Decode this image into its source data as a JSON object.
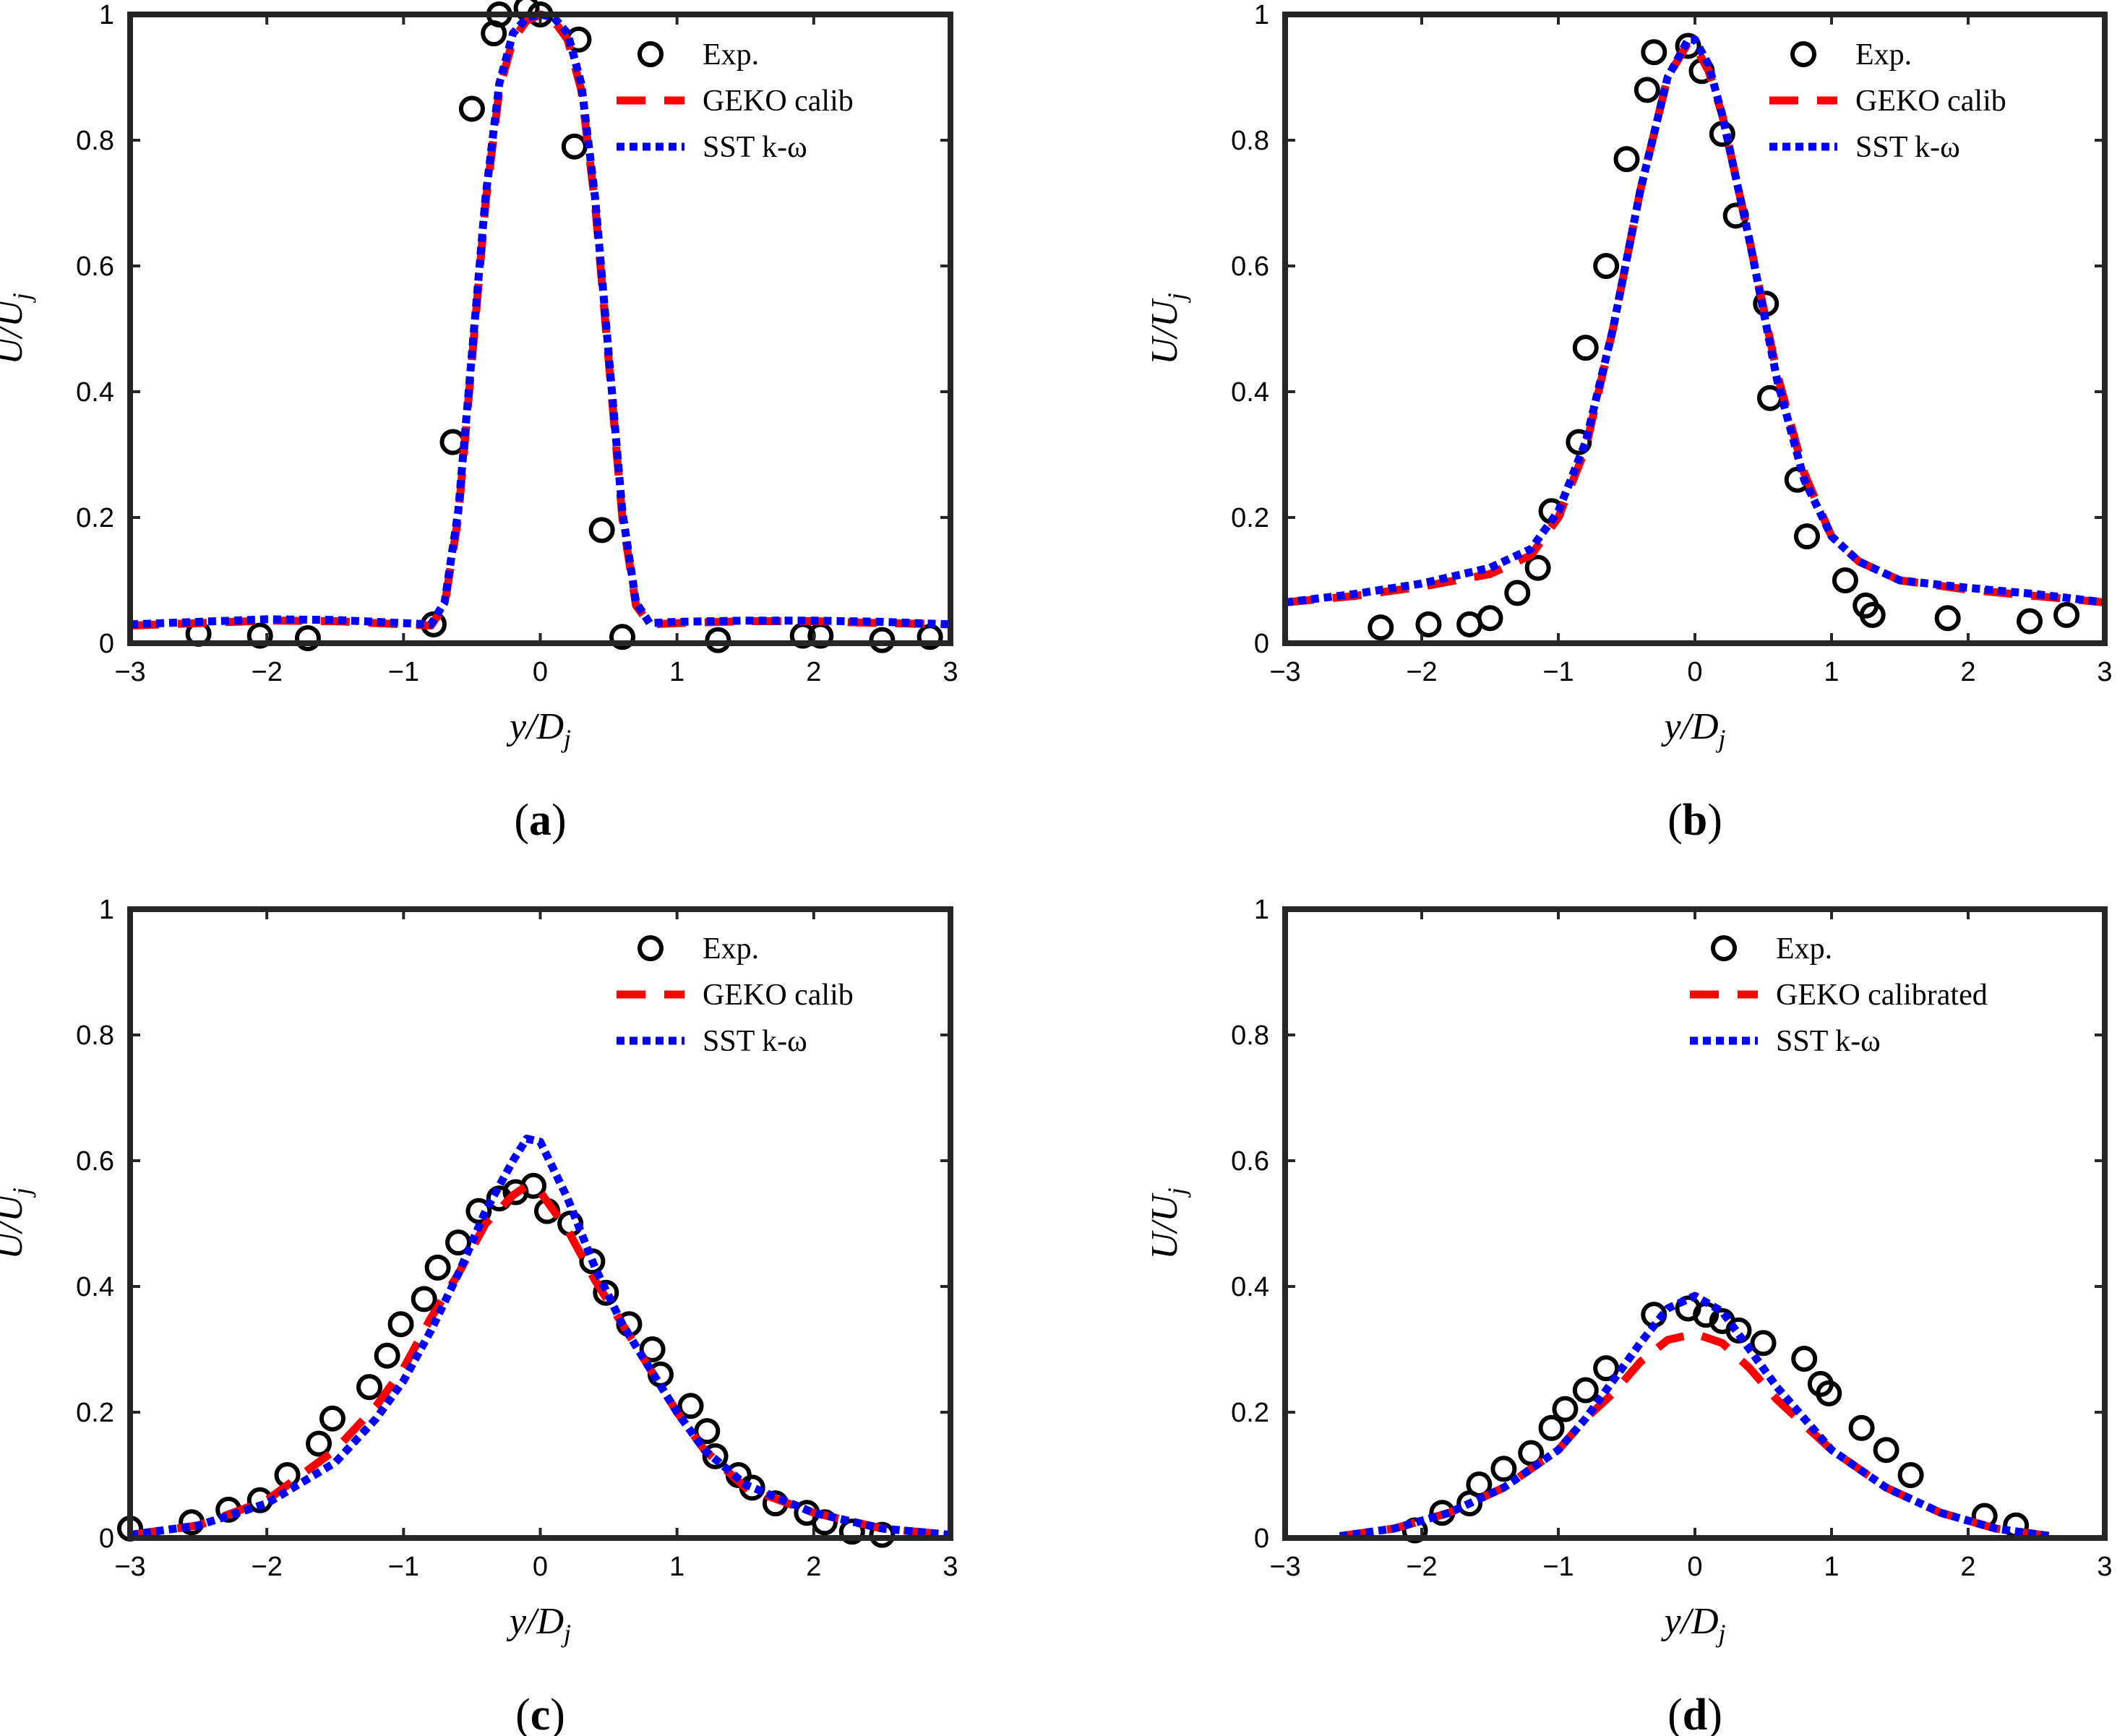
{
  "chart_data": [
    {
      "type": "line",
      "panel_label": "(a)",
      "xlabel": "y/D_j",
      "ylabel": "U/U_j",
      "xlim": [
        -3,
        3
      ],
      "ylim": [
        0,
        1
      ],
      "xticks": [
        "−3",
        "−2",
        "−1",
        "0",
        "1",
        "2",
        "3"
      ],
      "yticks": [
        "0",
        "0.2",
        "0.4",
        "0.6",
        "0.8",
        "1"
      ],
      "legend": {
        "position": "top-right",
        "entries": [
          "Exp.",
          "GEKO calib",
          "SST k-ω"
        ]
      },
      "series": [
        {
          "name": "Exp.",
          "style": "circles",
          "color": "#000000",
          "x": [
            -2.5,
            -2.05,
            -1.7,
            -0.78,
            -0.64,
            -0.5,
            -0.34,
            -0.3,
            -0.1,
            0.0,
            0.28,
            0.25,
            0.45,
            0.6,
            1.3,
            1.92,
            2.05,
            2.5,
            2.85
          ],
          "y": [
            0.015,
            0.012,
            0.008,
            0.03,
            0.32,
            0.85,
            0.97,
            1.0,
            1.01,
            1.0,
            0.96,
            0.79,
            0.18,
            0.01,
            0.005,
            0.012,
            0.012,
            0.005,
            0.01
          ]
        },
        {
          "name": "GEKO calib",
          "style": "dashed",
          "color": "#ff0000",
          "x": [
            -3,
            -2.5,
            -2,
            -1.5,
            -1,
            -0.8,
            -0.7,
            -0.6,
            -0.5,
            -0.4,
            -0.3,
            -0.2,
            -0.1,
            0,
            0.1,
            0.2,
            0.3,
            0.4,
            0.5,
            0.6,
            0.7,
            0.8,
            1,
            1.5,
            2,
            2.5,
            3
          ],
          "y": [
            0.028,
            0.032,
            0.036,
            0.035,
            0.03,
            0.028,
            0.06,
            0.2,
            0.45,
            0.7,
            0.88,
            0.96,
            0.99,
            1.0,
            0.99,
            0.96,
            0.88,
            0.7,
            0.45,
            0.2,
            0.06,
            0.03,
            0.032,
            0.035,
            0.035,
            0.032,
            0.03
          ]
        },
        {
          "name": "SST k-ω",
          "style": "dotted",
          "color": "#0000ff",
          "x": [
            -3,
            -2.5,
            -2,
            -1.5,
            -1,
            -0.8,
            -0.7,
            -0.6,
            -0.5,
            -0.4,
            -0.3,
            -0.2,
            -0.1,
            0,
            0.1,
            0.2,
            0.3,
            0.4,
            0.5,
            0.6,
            0.7,
            0.8,
            1,
            1.5,
            2,
            2.5,
            3
          ],
          "y": [
            0.03,
            0.034,
            0.038,
            0.037,
            0.032,
            0.03,
            0.065,
            0.21,
            0.46,
            0.71,
            0.89,
            0.97,
            0.995,
            1.0,
            0.995,
            0.97,
            0.89,
            0.71,
            0.46,
            0.21,
            0.065,
            0.032,
            0.034,
            0.036,
            0.036,
            0.034,
            0.03
          ]
        }
      ]
    },
    {
      "type": "line",
      "panel_label": "(b)",
      "xlabel": "y/D_j",
      "ylabel": "U/U_j",
      "xlim": [
        -3,
        3
      ],
      "ylim": [
        0,
        1
      ],
      "xticks": [
        "−3",
        "−2",
        "−1",
        "0",
        "1",
        "2",
        "3"
      ],
      "yticks": [
        "0",
        "0.2",
        "0.4",
        "0.6",
        "0.8",
        "1"
      ],
      "legend": {
        "position": "top-right",
        "entries": [
          "Exp.",
          "GEKO calib",
          "SST k-ω"
        ]
      },
      "series": [
        {
          "name": "Exp.",
          "style": "circles",
          "color": "#000000",
          "x": [
            -2.3,
            -1.95,
            -1.65,
            -1.5,
            -1.3,
            -1.15,
            -1.05,
            -0.85,
            -0.8,
            -0.65,
            -0.5,
            -0.35,
            -0.3,
            -0.05,
            0.05,
            0.2,
            0.3,
            0.52,
            0.55,
            0.75,
            0.82,
            1.1,
            1.25,
            1.3,
            1.85,
            2.45,
            2.72
          ],
          "y": [
            0.025,
            0.03,
            0.03,
            0.04,
            0.08,
            0.12,
            0.21,
            0.32,
            0.47,
            0.6,
            0.77,
            0.88,
            0.94,
            0.95,
            0.91,
            0.81,
            0.68,
            0.54,
            0.39,
            0.26,
            0.17,
            0.1,
            0.06,
            0.045,
            0.04,
            0.035,
            0.045
          ]
        },
        {
          "name": "GEKO calib",
          "style": "dashed",
          "color": "#ff0000",
          "x": [
            -3,
            -2.5,
            -2,
            -1.5,
            -1.2,
            -1,
            -0.8,
            -0.6,
            -0.4,
            -0.2,
            -0.05,
            0,
            0.1,
            0.2,
            0.4,
            0.6,
            0.8,
            1,
            1.2,
            1.5,
            2,
            2.5,
            3
          ],
          "y": [
            0.065,
            0.075,
            0.09,
            0.11,
            0.14,
            0.2,
            0.31,
            0.5,
            0.72,
            0.9,
            0.955,
            0.95,
            0.91,
            0.84,
            0.64,
            0.43,
            0.27,
            0.17,
            0.13,
            0.1,
            0.085,
            0.075,
            0.065
          ]
        },
        {
          "name": "SST k-ω",
          "style": "dotted",
          "color": "#0000ff",
          "x": [
            -3,
            -2.5,
            -2,
            -1.5,
            -1.2,
            -1,
            -0.8,
            -0.6,
            -0.4,
            -0.2,
            -0.05,
            0,
            0.1,
            0.2,
            0.4,
            0.6,
            0.8,
            1,
            1.2,
            1.5,
            2,
            2.5,
            3
          ],
          "y": [
            0.065,
            0.078,
            0.095,
            0.12,
            0.15,
            0.21,
            0.32,
            0.5,
            0.72,
            0.9,
            0.96,
            0.96,
            0.92,
            0.84,
            0.64,
            0.42,
            0.26,
            0.17,
            0.13,
            0.1,
            0.088,
            0.078,
            0.065
          ]
        }
      ]
    },
    {
      "type": "line",
      "panel_label": "(c)",
      "xlabel": "y/D_j",
      "ylabel": "U/U_j",
      "xlim": [
        -3,
        3
      ],
      "ylim": [
        0,
        1
      ],
      "xticks": [
        "−3",
        "−2",
        "−1",
        "0",
        "1",
        "2",
        "3"
      ],
      "yticks": [
        "0",
        "0.2",
        "0.4",
        "0.6",
        "0.8",
        "1"
      ],
      "legend": {
        "position": "top-right",
        "entries": [
          "Exp.",
          "GEKO calib",
          "SST k-ω"
        ]
      },
      "series": [
        {
          "name": "Exp.",
          "style": "circles",
          "color": "#000000",
          "x": [
            -3.0,
            -2.55,
            -2.28,
            -2.05,
            -1.85,
            -1.62,
            -1.52,
            -1.25,
            -1.12,
            -1.02,
            -0.85,
            -0.75,
            -0.6,
            -0.45,
            -0.3,
            -0.18,
            -0.05,
            0.05,
            0.22,
            0.38,
            0.48,
            0.65,
            0.82,
            0.88,
            1.1,
            1.22,
            1.28,
            1.45,
            1.55,
            1.72,
            1.95,
            2.08,
            2.28,
            2.5
          ],
          "y": [
            0.015,
            0.025,
            0.045,
            0.06,
            0.1,
            0.15,
            0.19,
            0.24,
            0.29,
            0.34,
            0.38,
            0.43,
            0.47,
            0.52,
            0.54,
            0.55,
            0.56,
            0.52,
            0.5,
            0.44,
            0.39,
            0.34,
            0.3,
            0.26,
            0.21,
            0.17,
            0.13,
            0.1,
            0.08,
            0.055,
            0.04,
            0.025,
            0.01,
            0.005
          ]
        },
        {
          "name": "GEKO calib",
          "style": "dashed",
          "color": "#ff0000",
          "x": [
            -3,
            -2.5,
            -2,
            -1.5,
            -1.2,
            -1,
            -0.8,
            -0.6,
            -0.4,
            -0.2,
            -0.1,
            0,
            0.2,
            0.4,
            0.6,
            0.8,
            1,
            1.2,
            1.5,
            2,
            2.5,
            3
          ],
          "y": [
            0.005,
            0.02,
            0.06,
            0.14,
            0.21,
            0.27,
            0.35,
            0.42,
            0.5,
            0.545,
            0.56,
            0.55,
            0.49,
            0.41,
            0.34,
            0.27,
            0.2,
            0.14,
            0.08,
            0.04,
            0.015,
            0.005
          ]
        },
        {
          "name": "SST k-ω",
          "style": "dotted",
          "color": "#0000ff",
          "x": [
            -3,
            -2.5,
            -2,
            -1.5,
            -1.2,
            -1,
            -0.8,
            -0.6,
            -0.4,
            -0.2,
            -0.1,
            0,
            0.2,
            0.4,
            0.6,
            0.8,
            1,
            1.2,
            1.5,
            2,
            2.5,
            3
          ],
          "y": [
            0.005,
            0.02,
            0.055,
            0.12,
            0.19,
            0.25,
            0.33,
            0.42,
            0.52,
            0.6,
            0.635,
            0.63,
            0.54,
            0.43,
            0.34,
            0.27,
            0.2,
            0.14,
            0.085,
            0.04,
            0.015,
            0.005
          ]
        }
      ]
    },
    {
      "type": "line",
      "panel_label": "(d)",
      "xlabel": "y/D_j",
      "ylabel": "U/U_j",
      "xlim": [
        -3,
        3
      ],
      "ylim": [
        0,
        1
      ],
      "xticks": [
        "−3",
        "−2",
        "−1",
        "0",
        "1",
        "2",
        "3"
      ],
      "yticks": [
        "0",
        "0.2",
        "0.4",
        "0.6",
        "0.8",
        "1"
      ],
      "legend": {
        "position": "top-right",
        "entries": [
          "Exp.",
          "GEKO calibrated",
          "SST k-ω"
        ]
      },
      "series": [
        {
          "name": "Exp.",
          "style": "circles",
          "color": "#000000",
          "x": [
            -2.05,
            -1.85,
            -1.65,
            -1.58,
            -1.4,
            -1.2,
            -1.05,
            -0.95,
            -0.8,
            -0.65,
            -0.3,
            -0.05,
            0.08,
            0.2,
            0.32,
            0.5,
            0.8,
            0.92,
            0.98,
            1.22,
            1.4,
            1.58,
            2.12,
            2.35
          ],
          "y": [
            0.012,
            0.04,
            0.055,
            0.085,
            0.11,
            0.135,
            0.175,
            0.205,
            0.235,
            0.27,
            0.355,
            0.365,
            0.355,
            0.345,
            0.33,
            0.31,
            0.285,
            0.245,
            0.23,
            0.175,
            0.14,
            0.1,
            0.035,
            0.02
          ]
        },
        {
          "name": "GEKO calibrated",
          "style": "dashed",
          "color": "#ff0000",
          "x": [
            -2.6,
            -2.2,
            -1.8,
            -1.4,
            -1,
            -0.8,
            -0.6,
            -0.4,
            -0.2,
            0,
            0.2,
            0.4,
            0.6,
            0.8,
            1,
            1.4,
            1.8,
            2.2,
            2.6
          ],
          "y": [
            0.003,
            0.015,
            0.04,
            0.08,
            0.14,
            0.19,
            0.23,
            0.28,
            0.315,
            0.325,
            0.31,
            0.27,
            0.22,
            0.18,
            0.14,
            0.08,
            0.04,
            0.015,
            0.003
          ]
        },
        {
          "name": "SST k-ω",
          "style": "dotted",
          "color": "#0000ff",
          "x": [
            -2.6,
            -2.2,
            -1.8,
            -1.4,
            -1,
            -0.8,
            -0.6,
            -0.4,
            -0.2,
            0,
            0.2,
            0.4,
            0.6,
            0.8,
            1,
            1.4,
            1.8,
            2.2,
            2.6
          ],
          "y": [
            0.003,
            0.015,
            0.04,
            0.08,
            0.14,
            0.19,
            0.25,
            0.31,
            0.365,
            0.385,
            0.36,
            0.3,
            0.24,
            0.19,
            0.14,
            0.08,
            0.04,
            0.015,
            0.003
          ]
        }
      ]
    }
  ]
}
